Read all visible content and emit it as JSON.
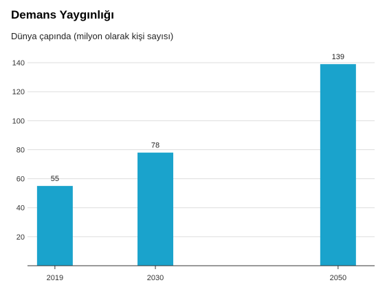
{
  "chart_data": {
    "type": "bar",
    "title": "Demans Yaygınlığı",
    "subtitle": "Dünya çapında (milyon olarak kişi sayısı)",
    "xlabel": "",
    "ylabel": "",
    "categories": [
      "2019",
      "2030",
      "2050"
    ],
    "x": [
      2019,
      2030,
      2050
    ],
    "values": [
      55,
      78,
      139
    ],
    "data_labels": [
      "55",
      "78",
      "139"
    ],
    "ylim": [
      0,
      150
    ],
    "yticks": [
      20,
      40,
      60,
      80,
      100,
      120,
      140
    ],
    "ytick_labels": [
      "20",
      "40",
      "60",
      "80",
      "100",
      "120",
      "140"
    ],
    "xlim": [
      2016,
      2054
    ],
    "grid": true,
    "bar_color": "#1aa3cc"
  }
}
